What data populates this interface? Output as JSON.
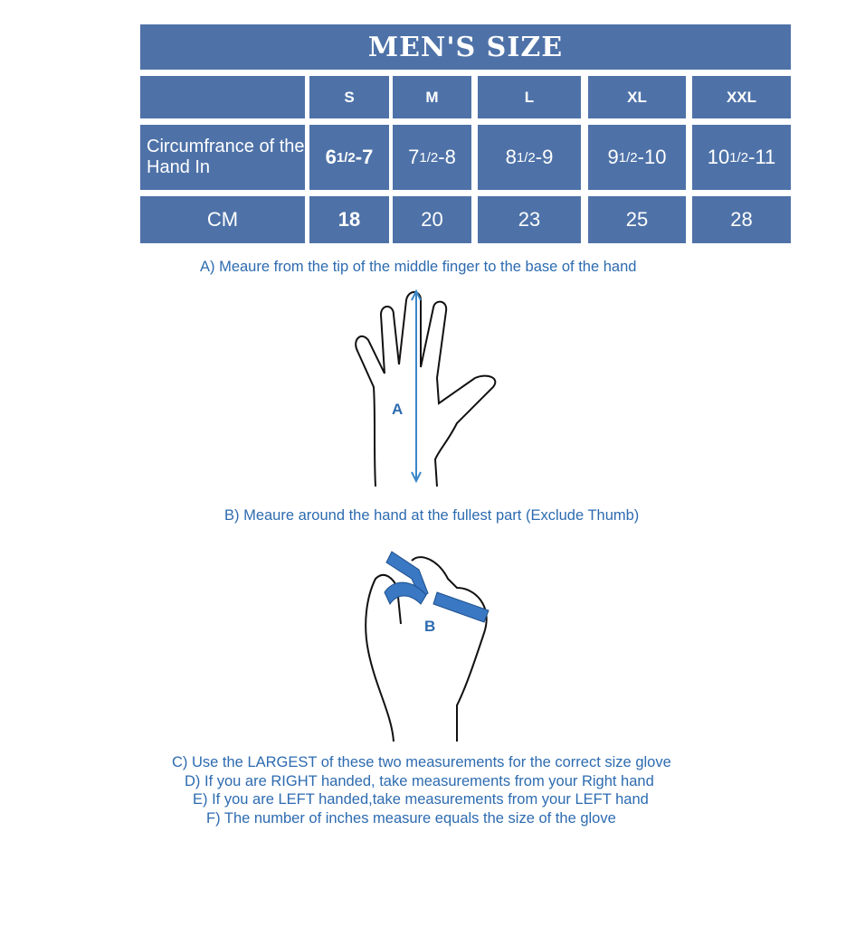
{
  "title": "MEN'S SIZE",
  "sizes": [
    "S",
    "M",
    "L",
    "XL",
    "XXL"
  ],
  "rows": [
    {
      "label": "Circumfrance of the Hand In",
      "values": [
        [
          "6 ",
          "1/2",
          "-7"
        ],
        [
          "7",
          "1/2",
          "-8"
        ],
        [
          "8",
          "1/2",
          " -9"
        ],
        [
          "9",
          "1/2",
          " -10"
        ],
        [
          "10",
          "1/2",
          "-11"
        ]
      ]
    },
    {
      "label": "CM",
      "values": [
        "18",
        "20",
        "23",
        "25",
        "28"
      ]
    }
  ],
  "instructions": {
    "a": "A) Meaure from the tip of the middle finger to the base of the hand",
    "b": "B) Meaure around the hand at the fullest part (Exclude Thumb)",
    "c": "C) Use the LARGEST of these two measurements for the correct size glove",
    "d": "D) If you are RIGHT handed, take measurements from your Right hand",
    "e": "E) If you are LEFT handed,take measurements from your LEFT hand",
    "f": "F) The number of inches measure equals the size of the glove"
  },
  "figure_labels": {
    "a": "A",
    "b": "B"
  },
  "colors": {
    "table": "#4e72a8",
    "text": "#2d6bb0"
  }
}
